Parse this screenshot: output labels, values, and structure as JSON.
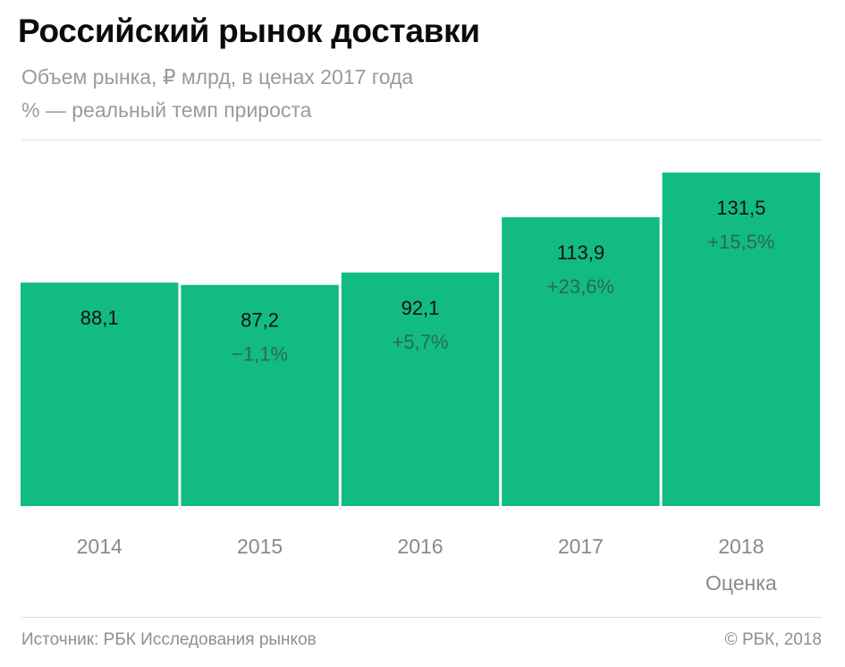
{
  "header": {
    "title": "Российский рынок доставки",
    "subtitle_line1": "Объем рынка, ₽ млрд, в ценах 2017 года",
    "subtitle_line2": "% — реальный темп прироста"
  },
  "footer": {
    "source": "Источник: РБК Исследования рынков",
    "copyright": "© РБК, 2018"
  },
  "colors": {
    "bar": "#12bb82",
    "growth_label": "#2b6b4c"
  },
  "chart_data": {
    "type": "bar",
    "categories": [
      "2014",
      "2015",
      "2016",
      "2017",
      "2018"
    ],
    "category_notes": [
      "",
      "",
      "",
      "",
      "Оценка"
    ],
    "values": [
      88.1,
      87.2,
      92.1,
      113.9,
      131.5
    ],
    "value_labels": [
      "88,1",
      "87,2",
      "92,1",
      "113,9",
      "131,5"
    ],
    "growth_labels": [
      "",
      "−1,1%",
      "+5,7%",
      "+23,6%",
      "+15,5%"
    ],
    "unit": "₽ млрд",
    "ylim": [
      0,
      131.5
    ],
    "grid": false,
    "legend": "none"
  }
}
